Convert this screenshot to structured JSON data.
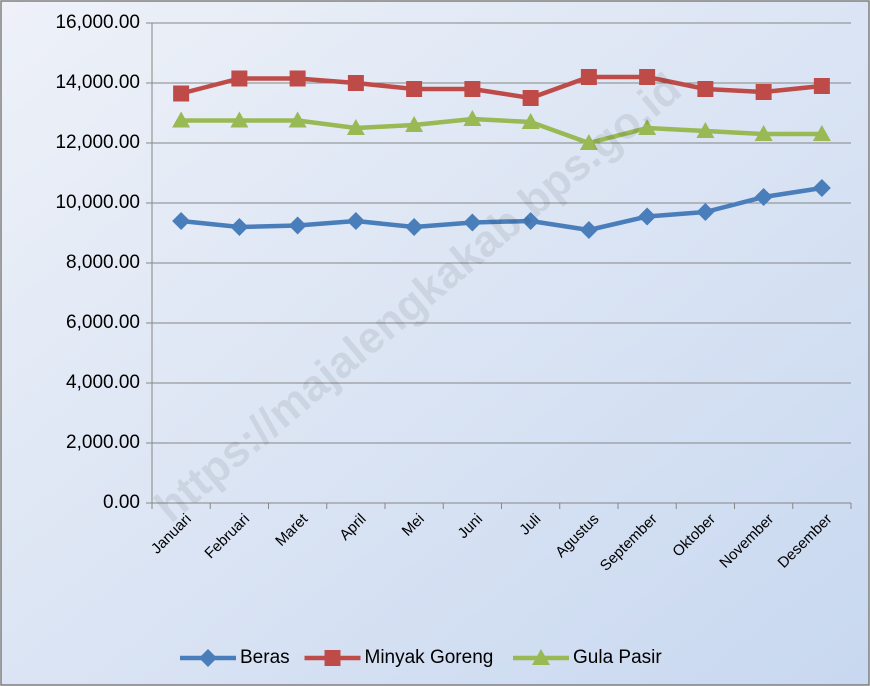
{
  "chart_data": {
    "type": "line",
    "categories": [
      "Januari",
      "Februari",
      "Maret",
      "April",
      "Mei",
      "Juni",
      "Juli",
      "Agustus",
      "September",
      "Oktober",
      "November",
      "Desember"
    ],
    "series": [
      {
        "name": "Beras",
        "color": "#4a7ebb",
        "marker": "diamond",
        "values": [
          9400,
          9200,
          9250,
          9400,
          9200,
          9350,
          9400,
          9100,
          9550,
          9700,
          10200,
          10500
        ]
      },
      {
        "name": "Minyak Goreng",
        "color": "#be4b48",
        "marker": "square",
        "values": [
          13650,
          14150,
          14150,
          14000,
          13800,
          13800,
          13500,
          14200,
          14200,
          13800,
          13700,
          13900
        ]
      },
      {
        "name": "Gula Pasir",
        "color": "#98b954",
        "marker": "triangle",
        "values": [
          12750,
          12750,
          12750,
          12500,
          12600,
          12800,
          12700,
          12000,
          12500,
          12400,
          12300,
          12300
        ]
      }
    ],
    "ylim": [
      0,
      16000
    ],
    "yticks": [
      {
        "value": 0,
        "label": "0.00"
      },
      {
        "value": 2000,
        "label": "2,000.00"
      },
      {
        "value": 4000,
        "label": "4,000.00"
      },
      {
        "value": 6000,
        "label": "6,000.00"
      },
      {
        "value": 8000,
        "label": "8,000.00"
      },
      {
        "value": 10000,
        "label": "10,000.00"
      },
      {
        "value": 12000,
        "label": "12,000.00"
      },
      {
        "value": 14000,
        "label": "14,000.00"
      },
      {
        "value": 16000,
        "label": "16,000.00"
      }
    ],
    "grid": true,
    "legend": "bottom",
    "watermark": "https://majalengkakab.bps.go.id"
  }
}
